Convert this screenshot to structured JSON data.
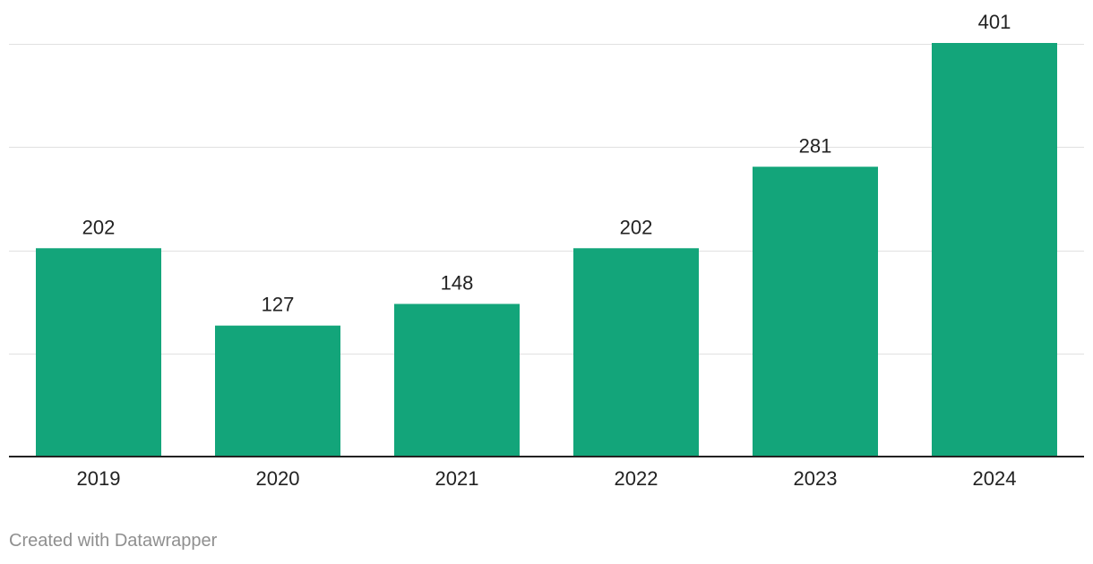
{
  "chart_data": {
    "type": "bar",
    "title": "",
    "xlabel": "",
    "ylabel": "",
    "categories": [
      "2019",
      "2020",
      "2021",
      "2022",
      "2023",
      "2024"
    ],
    "values": [
      202,
      127,
      148,
      202,
      281,
      401
    ],
    "ylim": [
      0,
      401
    ],
    "y_gridlines": [
      100,
      200,
      300,
      400
    ],
    "grid": true,
    "legend": "none",
    "bar_color": "#13a57a",
    "show_value_labels": true
  },
  "footer": {
    "credit": "Created with Datawrapper"
  }
}
